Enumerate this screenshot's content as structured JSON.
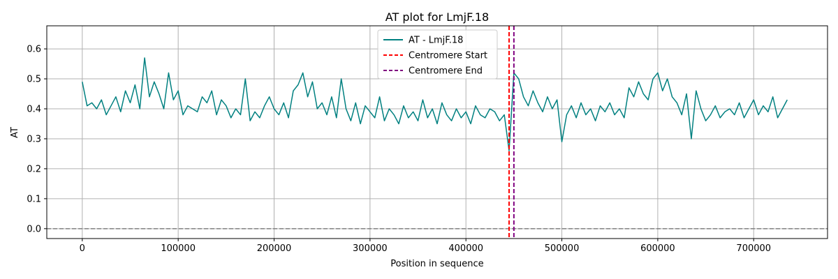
{
  "chart_data": {
    "type": "line",
    "title": "AT plot for LmjF.18",
    "xlabel": "Position in sequence",
    "ylabel": "AT",
    "xlim": [
      -37000,
      777000
    ],
    "ylim": [
      -0.033,
      0.677
    ],
    "x_ticks": [
      0,
      100000,
      200000,
      300000,
      400000,
      500000,
      600000,
      700000
    ],
    "x_tick_labels": [
      "0",
      "100000",
      "200000",
      "300000",
      "400000",
      "500000",
      "600000",
      "700000"
    ],
    "y_ticks": [
      0.0,
      0.1,
      0.2,
      0.3,
      0.4,
      0.5,
      0.6
    ],
    "y_tick_labels": [
      "0.0",
      "0.1",
      "0.2",
      "0.3",
      "0.4",
      "0.5",
      "0.6"
    ],
    "grid": true,
    "legend_position": "top-center",
    "series": [
      {
        "name": "AT - LmjF.18",
        "color": "#008080",
        "x_step": 5000,
        "x": [
          0,
          5000,
          10000,
          15000,
          20000,
          25000,
          30000,
          35000,
          40000,
          45000,
          50000,
          55000,
          60000,
          65000,
          70000,
          75000,
          80000,
          85000,
          90000,
          95000,
          100000,
          105000,
          110000,
          115000,
          120000,
          125000,
          130000,
          135000,
          140000,
          145000,
          150000,
          155000,
          160000,
          165000,
          170000,
          175000,
          180000,
          185000,
          190000,
          195000,
          200000,
          205000,
          210000,
          215000,
          220000,
          225000,
          230000,
          235000,
          240000,
          245000,
          250000,
          255000,
          260000,
          265000,
          270000,
          275000,
          280000,
          285000,
          290000,
          295000,
          300000,
          305000,
          310000,
          315000,
          320000,
          325000,
          330000,
          335000,
          340000,
          345000,
          350000,
          355000,
          360000,
          365000,
          370000,
          375000,
          380000,
          385000,
          390000,
          395000,
          400000,
          405000,
          410000,
          415000,
          420000,
          425000,
          430000,
          435000,
          440000,
          445000,
          450000,
          455000,
          460000,
          465000,
          470000,
          475000,
          480000,
          485000,
          490000,
          495000,
          500000,
          505000,
          510000,
          515000,
          520000,
          525000,
          530000,
          535000,
          540000,
          545000,
          550000,
          555000,
          560000,
          565000,
          570000,
          575000,
          580000,
          585000,
          590000,
          595000,
          600000,
          605000,
          610000,
          615000,
          620000,
          625000,
          630000,
          635000,
          640000,
          645000,
          650000,
          655000,
          660000,
          665000,
          670000,
          675000,
          680000,
          685000,
          690000,
          695000,
          700000,
          705000,
          710000,
          715000,
          720000,
          725000,
          730000,
          735000
        ],
        "y": [
          0.49,
          0.41,
          0.42,
          0.4,
          0.43,
          0.38,
          0.41,
          0.44,
          0.39,
          0.46,
          0.42,
          0.48,
          0.4,
          0.57,
          0.44,
          0.49,
          0.45,
          0.4,
          0.52,
          0.43,
          0.46,
          0.38,
          0.41,
          0.4,
          0.39,
          0.44,
          0.42,
          0.46,
          0.38,
          0.43,
          0.41,
          0.37,
          0.4,
          0.38,
          0.5,
          0.36,
          0.39,
          0.37,
          0.41,
          0.44,
          0.4,
          0.38,
          0.42,
          0.37,
          0.46,
          0.48,
          0.52,
          0.44,
          0.49,
          0.4,
          0.42,
          0.38,
          0.44,
          0.37,
          0.5,
          0.4,
          0.36,
          0.42,
          0.35,
          0.41,
          0.39,
          0.37,
          0.44,
          0.36,
          0.4,
          0.38,
          0.35,
          0.41,
          0.37,
          0.39,
          0.36,
          0.43,
          0.37,
          0.4,
          0.35,
          0.42,
          0.38,
          0.36,
          0.4,
          0.37,
          0.39,
          0.35,
          0.41,
          0.38,
          0.37,
          0.4,
          0.39,
          0.36,
          0.38,
          0.26,
          0.52,
          0.5,
          0.44,
          0.41,
          0.46,
          0.42,
          0.39,
          0.44,
          0.4,
          0.43,
          0.29,
          0.38,
          0.41,
          0.37,
          0.42,
          0.38,
          0.4,
          0.36,
          0.41,
          0.39,
          0.42,
          0.38,
          0.4,
          0.37,
          0.47,
          0.44,
          0.49,
          0.45,
          0.43,
          0.5,
          0.52,
          0.46,
          0.5,
          0.44,
          0.42,
          0.38,
          0.45,
          0.3,
          0.46,
          0.4,
          0.36,
          0.38,
          0.41,
          0.37,
          0.39,
          0.4,
          0.38,
          0.42,
          0.37,
          0.4,
          0.43,
          0.38,
          0.41,
          0.39,
          0.44,
          0.37,
          0.4,
          0.43
        ]
      }
    ],
    "hlines": [
      {
        "y": 0.0,
        "color": "#808080",
        "style": "dashed"
      }
    ],
    "vlines": [
      {
        "name": "Centromere Start",
        "x": 445000,
        "color": "#ff0000",
        "style": "dashed"
      },
      {
        "name": "Centromere End",
        "x": 450000,
        "color": "#800080",
        "style": "dashed"
      }
    ],
    "legend": [
      {
        "label": "AT - LmjF.18",
        "color": "#008080",
        "style": "solid"
      },
      {
        "label": "Centromere Start",
        "color": "#ff0000",
        "style": "dashed"
      },
      {
        "label": "Centromere End",
        "color": "#800080",
        "style": "dashed"
      }
    ]
  }
}
